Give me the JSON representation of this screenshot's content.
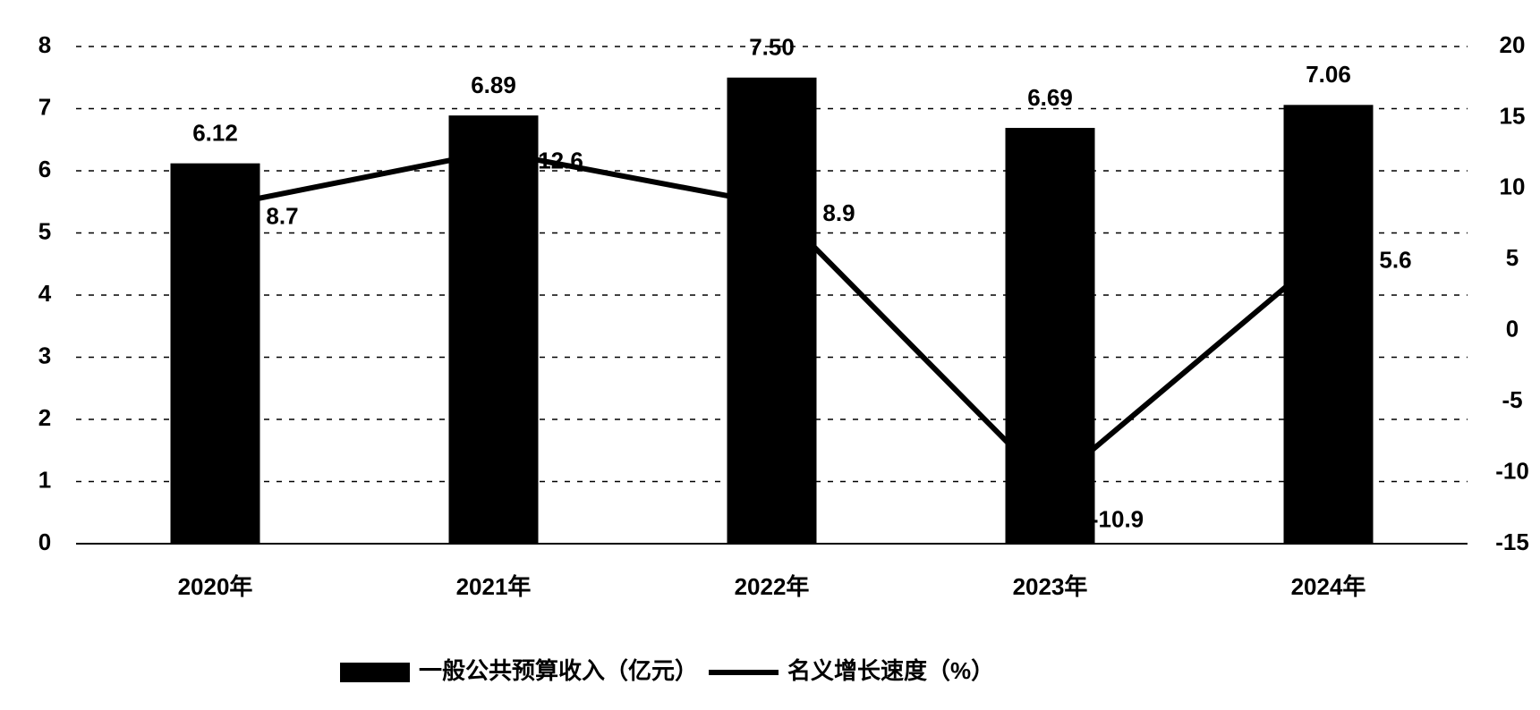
{
  "chart_data": {
    "type": "bar",
    "categories": [
      "2020年",
      "2021年",
      "2022年",
      "2023年",
      "2024年"
    ],
    "series": [
      {
        "name": "一般公共预算收入（亿元）",
        "color": "#000000",
        "values": [
          6.12,
          6.89,
          7.5,
          6.69,
          7.06
        ],
        "value_labels": [
          "6.12",
          "6.89",
          "7.50",
          "6.69",
          "7.06"
        ]
      },
      {
        "name": "名义增长速度（%）",
        "color": "#000000",
        "type": "line",
        "axis": "y2",
        "values": [
          8.7,
          12.6,
          8.9,
          -10.9,
          5.6
        ]
      }
    ],
    "ylim": [
      0,
      8
    ],
    "yticks": [
      0,
      1,
      2,
      3,
      4,
      5,
      6,
      7,
      8
    ],
    "y2lim": [
      -15,
      20
    ],
    "y2ticks": [
      -15,
      -10,
      -5,
      0,
      5,
      10,
      15,
      20
    ],
    "grid": true,
    "legend": "bottom"
  }
}
